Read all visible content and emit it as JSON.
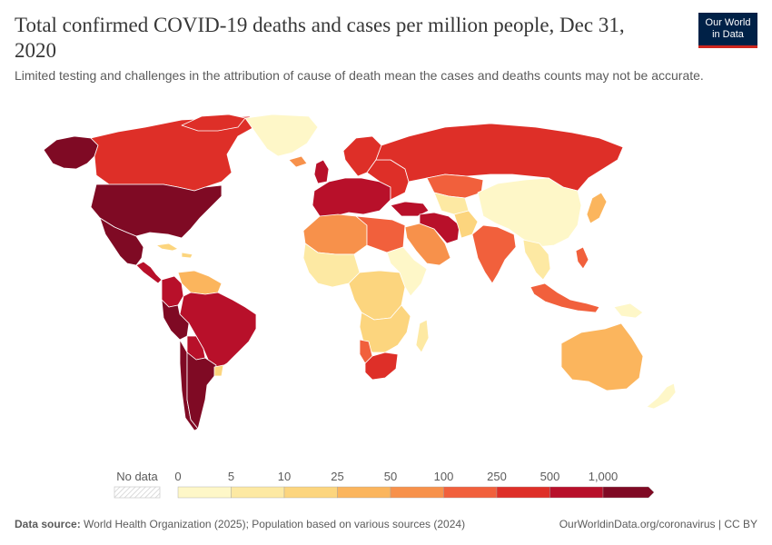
{
  "header": {
    "title": "Total confirmed COVID-19 deaths and cases per million people, Dec 31, 2020",
    "subtitle": "Limited testing and challenges in the attribution of cause of death mean the cases and deaths counts may not be accurate."
  },
  "logo": {
    "line1": "Our World",
    "line2": "in Data"
  },
  "legend": {
    "no_data_label": "No data",
    "ticks": [
      "0",
      "5",
      "10",
      "25",
      "50",
      "100",
      "250",
      "500",
      "1,000"
    ],
    "colors": [
      "#fef7c8",
      "#fde9a3",
      "#fcd57e",
      "#fbb55d",
      "#f7914b",
      "#f1603c",
      "#de2f28",
      "#b8102a",
      "#7f0a24"
    ]
  },
  "map_colors": {
    "ocean": "#ffffff",
    "border": "#ffffff",
    "north_america_us_mexico": "#7f0a24",
    "canada": "#de2f28",
    "greenland": "#fef7c8",
    "alaska": "#7f0a24",
    "central_america": "#b8102a",
    "caribbean": "#fcd57e",
    "south_america_peru_chile_argentina": "#7f0a24",
    "brazil_colombia": "#b8102a",
    "venezuela_guyana": "#fbb55d",
    "europe_west": "#b8102a",
    "europe_north": "#de2f28",
    "russia": "#de2f28",
    "kazakhstan": "#f1603c",
    "central_asia": "#fde9a3",
    "middle_east": "#f7914b",
    "iran_iraq": "#b8102a",
    "india": "#f1603c",
    "china_mongolia": "#fef7c8",
    "southeast_asia": "#fde9a3",
    "indonesia_philippines": "#f1603c",
    "japan": "#fbb55d",
    "north_africa": "#f7914b",
    "libya_egypt": "#f1603c",
    "west_africa": "#fde9a3",
    "central_africa": "#fcd57e",
    "east_africa": "#fef7c8",
    "southern_africa": "#fcd57e",
    "south_africa": "#de2f28",
    "namibia": "#f1603c",
    "madagascar": "#fde9a3",
    "australia": "#fbb55d",
    "new_zealand": "#fef7c8",
    "png": "#fef7c8"
  },
  "footer": {
    "source_label": "Data source:",
    "source_text": "World Health Organization (2025); Population based on various sources (2024)",
    "right_text": "OurWorldinData.org/coronavirus | CC BY"
  }
}
